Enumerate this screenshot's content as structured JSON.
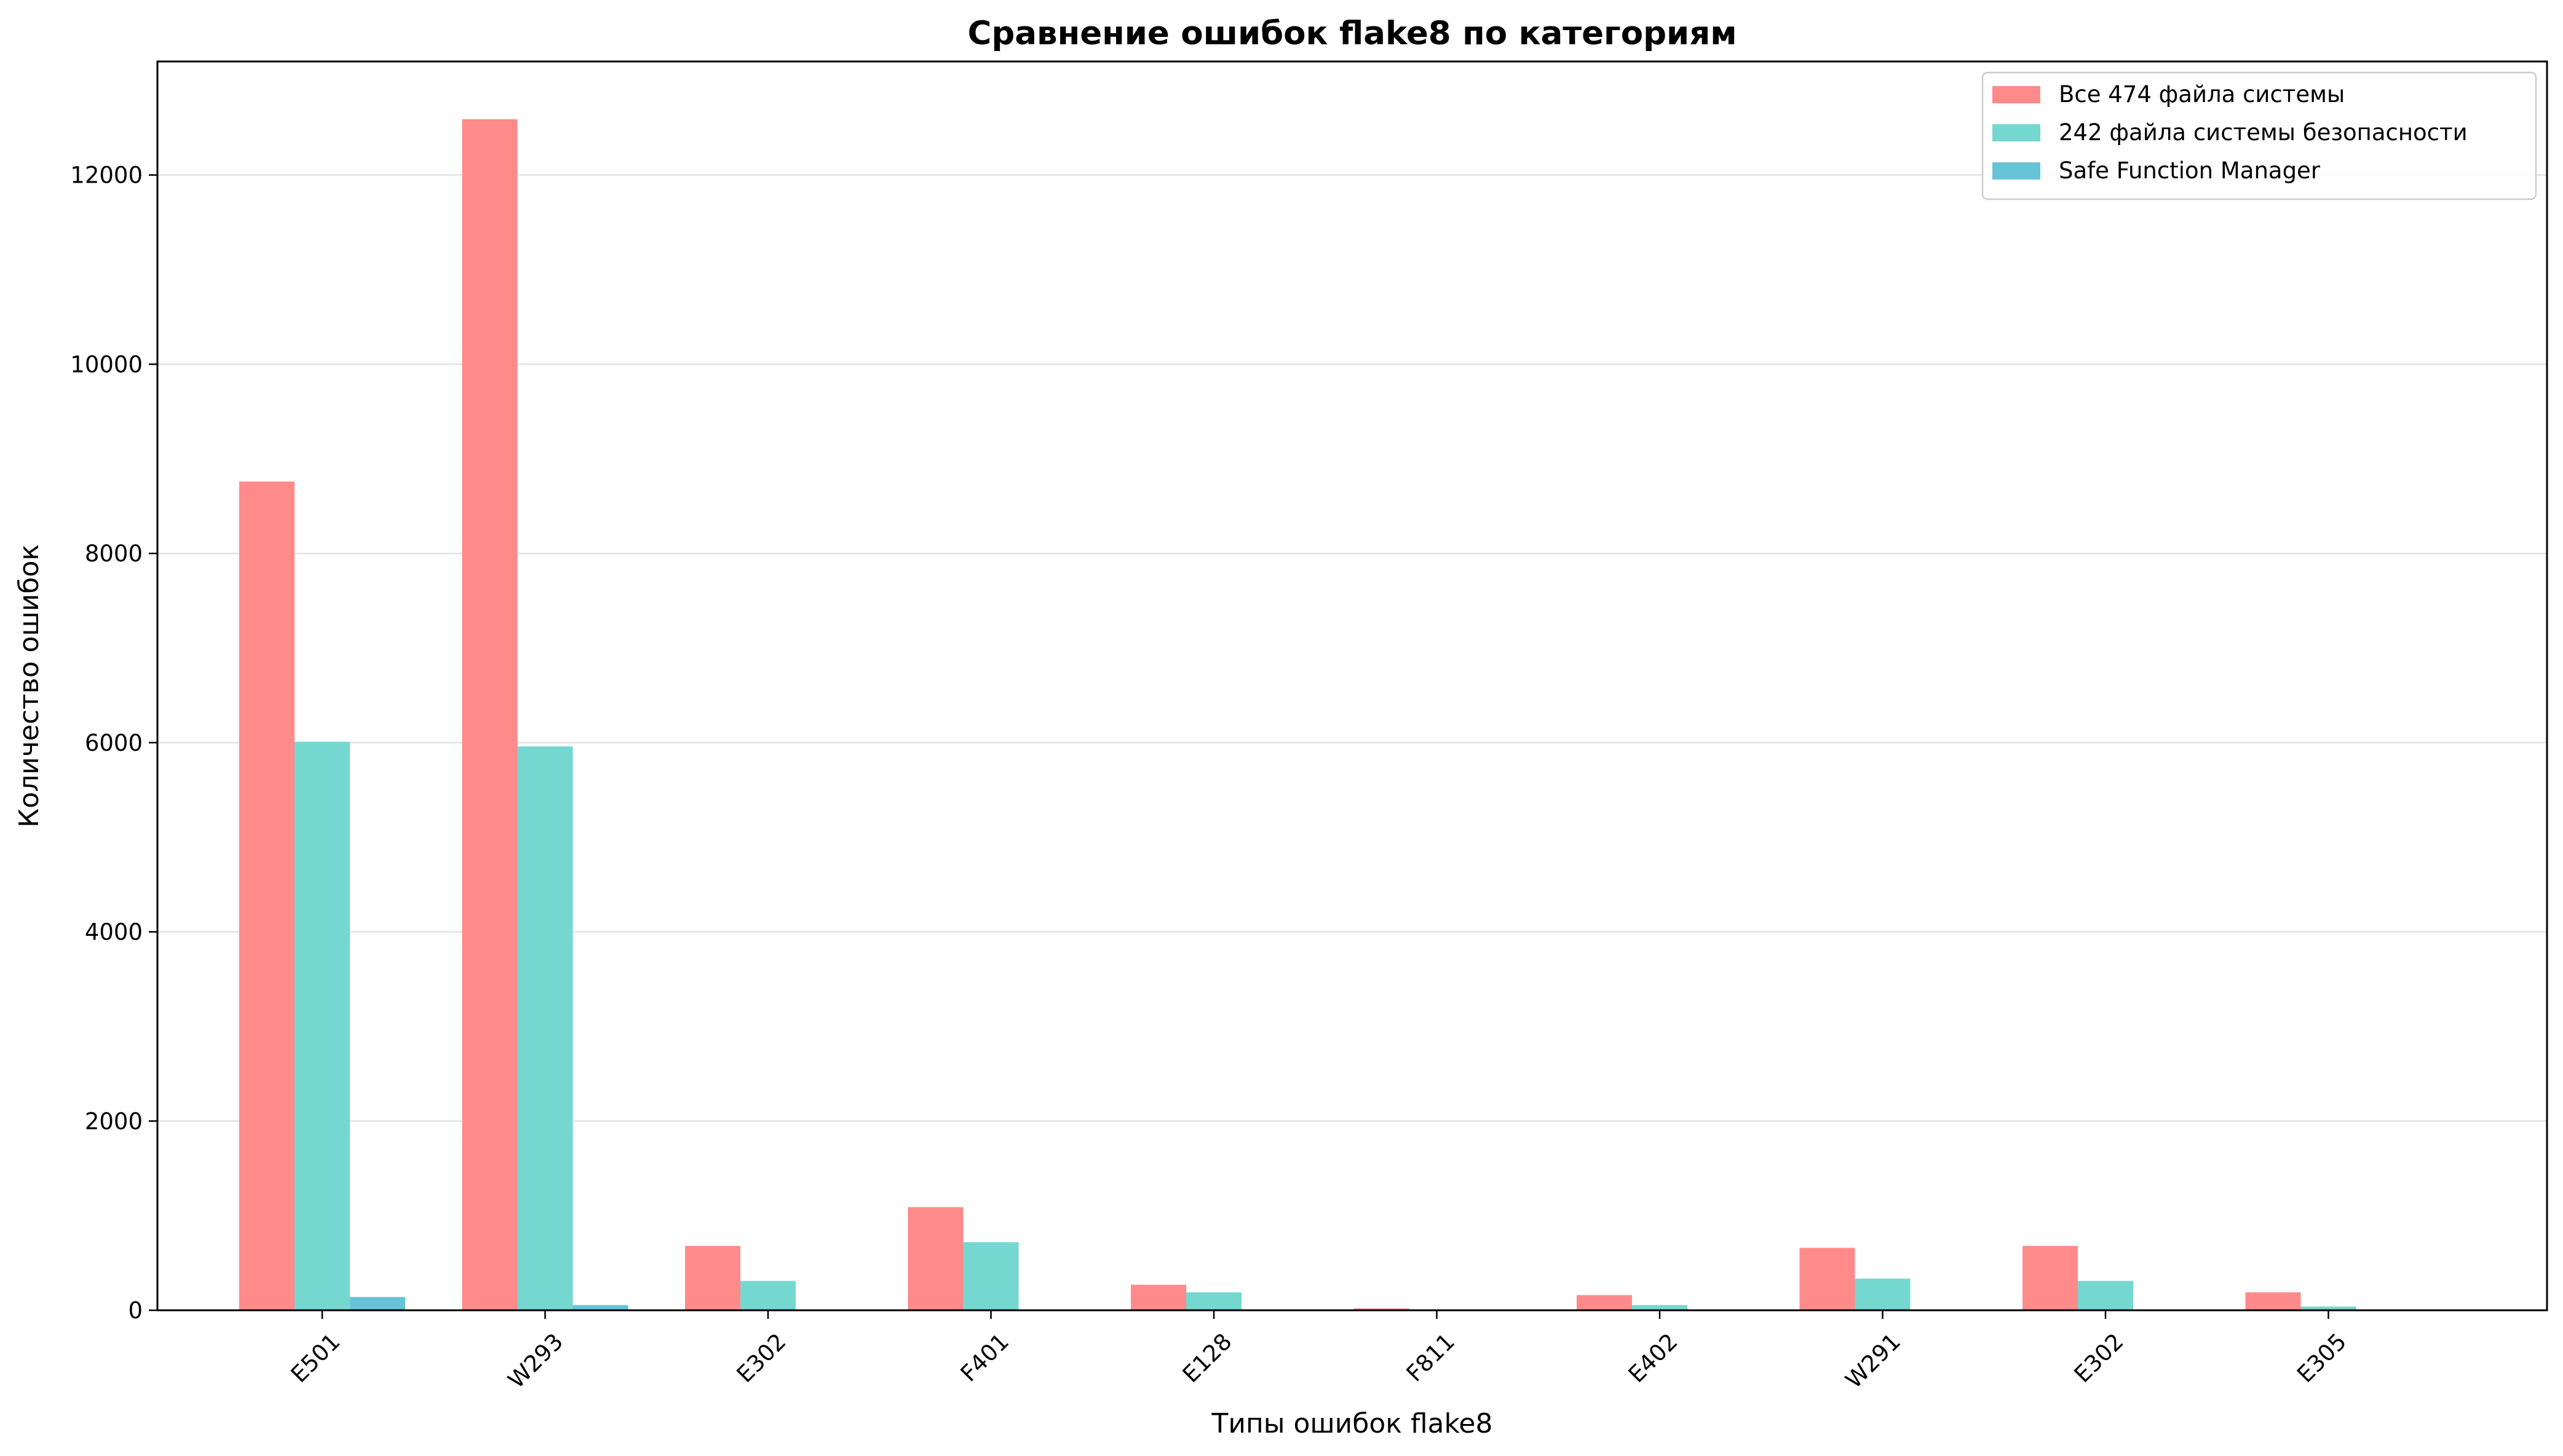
{
  "chart_data": {
    "type": "bar",
    "title": "Сравнение ошибок flake8 по категориям",
    "xlabel": "Типы ошибок flake8",
    "ylabel": "Количество ошибок",
    "categories": [
      "E501",
      "W293",
      "E302",
      "F401",
      "E128",
      "F811",
      "E402",
      "W291",
      "E302",
      "E305"
    ],
    "ylim": [
      0,
      13200
    ],
    "yticks": [
      0,
      2000,
      4000,
      6000,
      8000,
      10000,
      12000
    ],
    "grid": "y",
    "legend_position": "top-right",
    "series": [
      {
        "name": "Все 474 файла системы",
        "color": "#ff8a8a",
        "values": [
          8760,
          12590,
          680,
          1090,
          270,
          20,
          160,
          660,
          680,
          190
        ]
      },
      {
        "name": "242 файла системы безопасности",
        "color": "#75d8d0",
        "values": [
          6010,
          5960,
          310,
          720,
          190,
          10,
          55,
          335,
          310,
          40
        ]
      },
      {
        "name": "Safe Function Manager",
        "color": "#67c3d8",
        "values": [
          140,
          55,
          5,
          5,
          5,
          0,
          0,
          5,
          5,
          0
        ]
      }
    ]
  }
}
